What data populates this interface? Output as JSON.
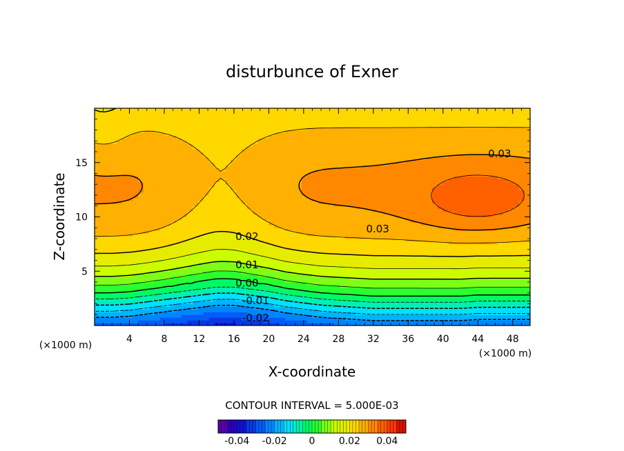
{
  "chart_data": {
    "type": "heatmap",
    "subtype": "filled contour",
    "title": "disturbunce of Exner",
    "xlabel": "X-coordinate",
    "ylabel": "Z-coordinate",
    "x_unit_left": "(×1000 m)",
    "x_unit_right": "(×1000 m)",
    "xlim": [
      0,
      50
    ],
    "ylim": [
      0,
      20
    ],
    "x_ticks": [
      4,
      8,
      12,
      16,
      20,
      24,
      28,
      32,
      36,
      40,
      44,
      48
    ],
    "y_ticks": [
      5,
      10,
      15
    ],
    "x_tick_labels": [
      "4",
      "8",
      "12",
      "16",
      "20",
      "24",
      "28",
      "32",
      "36",
      "40",
      "44",
      "48"
    ],
    "y_tick_labels": [
      "5",
      "10",
      "15"
    ],
    "contour_interval_text": "CONTOUR INTERVAL = 5.000E-03",
    "contour_interval": 0.005,
    "zlim": [
      -0.05,
      0.05
    ],
    "negative_contours_dashed": true,
    "contour_labels": [
      {
        "text": "0.03",
        "x": 46.5,
        "z": 15.8
      },
      {
        "text": "0.03",
        "x": 32.5,
        "z": 8.9
      },
      {
        "text": "0.02",
        "x": 17.5,
        "z": 8.2
      },
      {
        "text": "0.01",
        "x": 17.5,
        "z": 5.6
      },
      {
        "text": "0.00",
        "x": 17.5,
        "z": 3.9
      },
      {
        "text": "-0.01",
        "x": 18.5,
        "z": 2.3
      },
      {
        "text": "-0.02",
        "x": 18.5,
        "z": 0.7
      }
    ],
    "colorbar": {
      "labels": [
        "-0.04",
        "-0.02",
        "0",
        "0.02",
        "0.04"
      ],
      "ticks": [
        -0.04,
        -0.02,
        0,
        0.02,
        0.04
      ],
      "range": [
        -0.05,
        0.05
      ]
    },
    "field_notes": {
      "x_samples": [
        0,
        2,
        4,
        6,
        8,
        10,
        12,
        14,
        15,
        16,
        18,
        20,
        22,
        24,
        26,
        28,
        30,
        32,
        34,
        36,
        38,
        40,
        42,
        44,
        46,
        48,
        50
      ],
      "z_zero_contour": [
        3.0,
        3.0,
        3.1,
        3.3,
        3.5,
        3.7,
        3.9,
        4.1,
        4.1,
        4.1,
        3.9,
        3.7,
        3.4,
        3.2,
        3.0,
        2.9,
        2.8,
        2.7,
        2.7,
        2.7,
        2.7,
        2.7,
        2.7,
        2.8,
        2.8,
        2.8,
        2.8
      ]
    }
  }
}
